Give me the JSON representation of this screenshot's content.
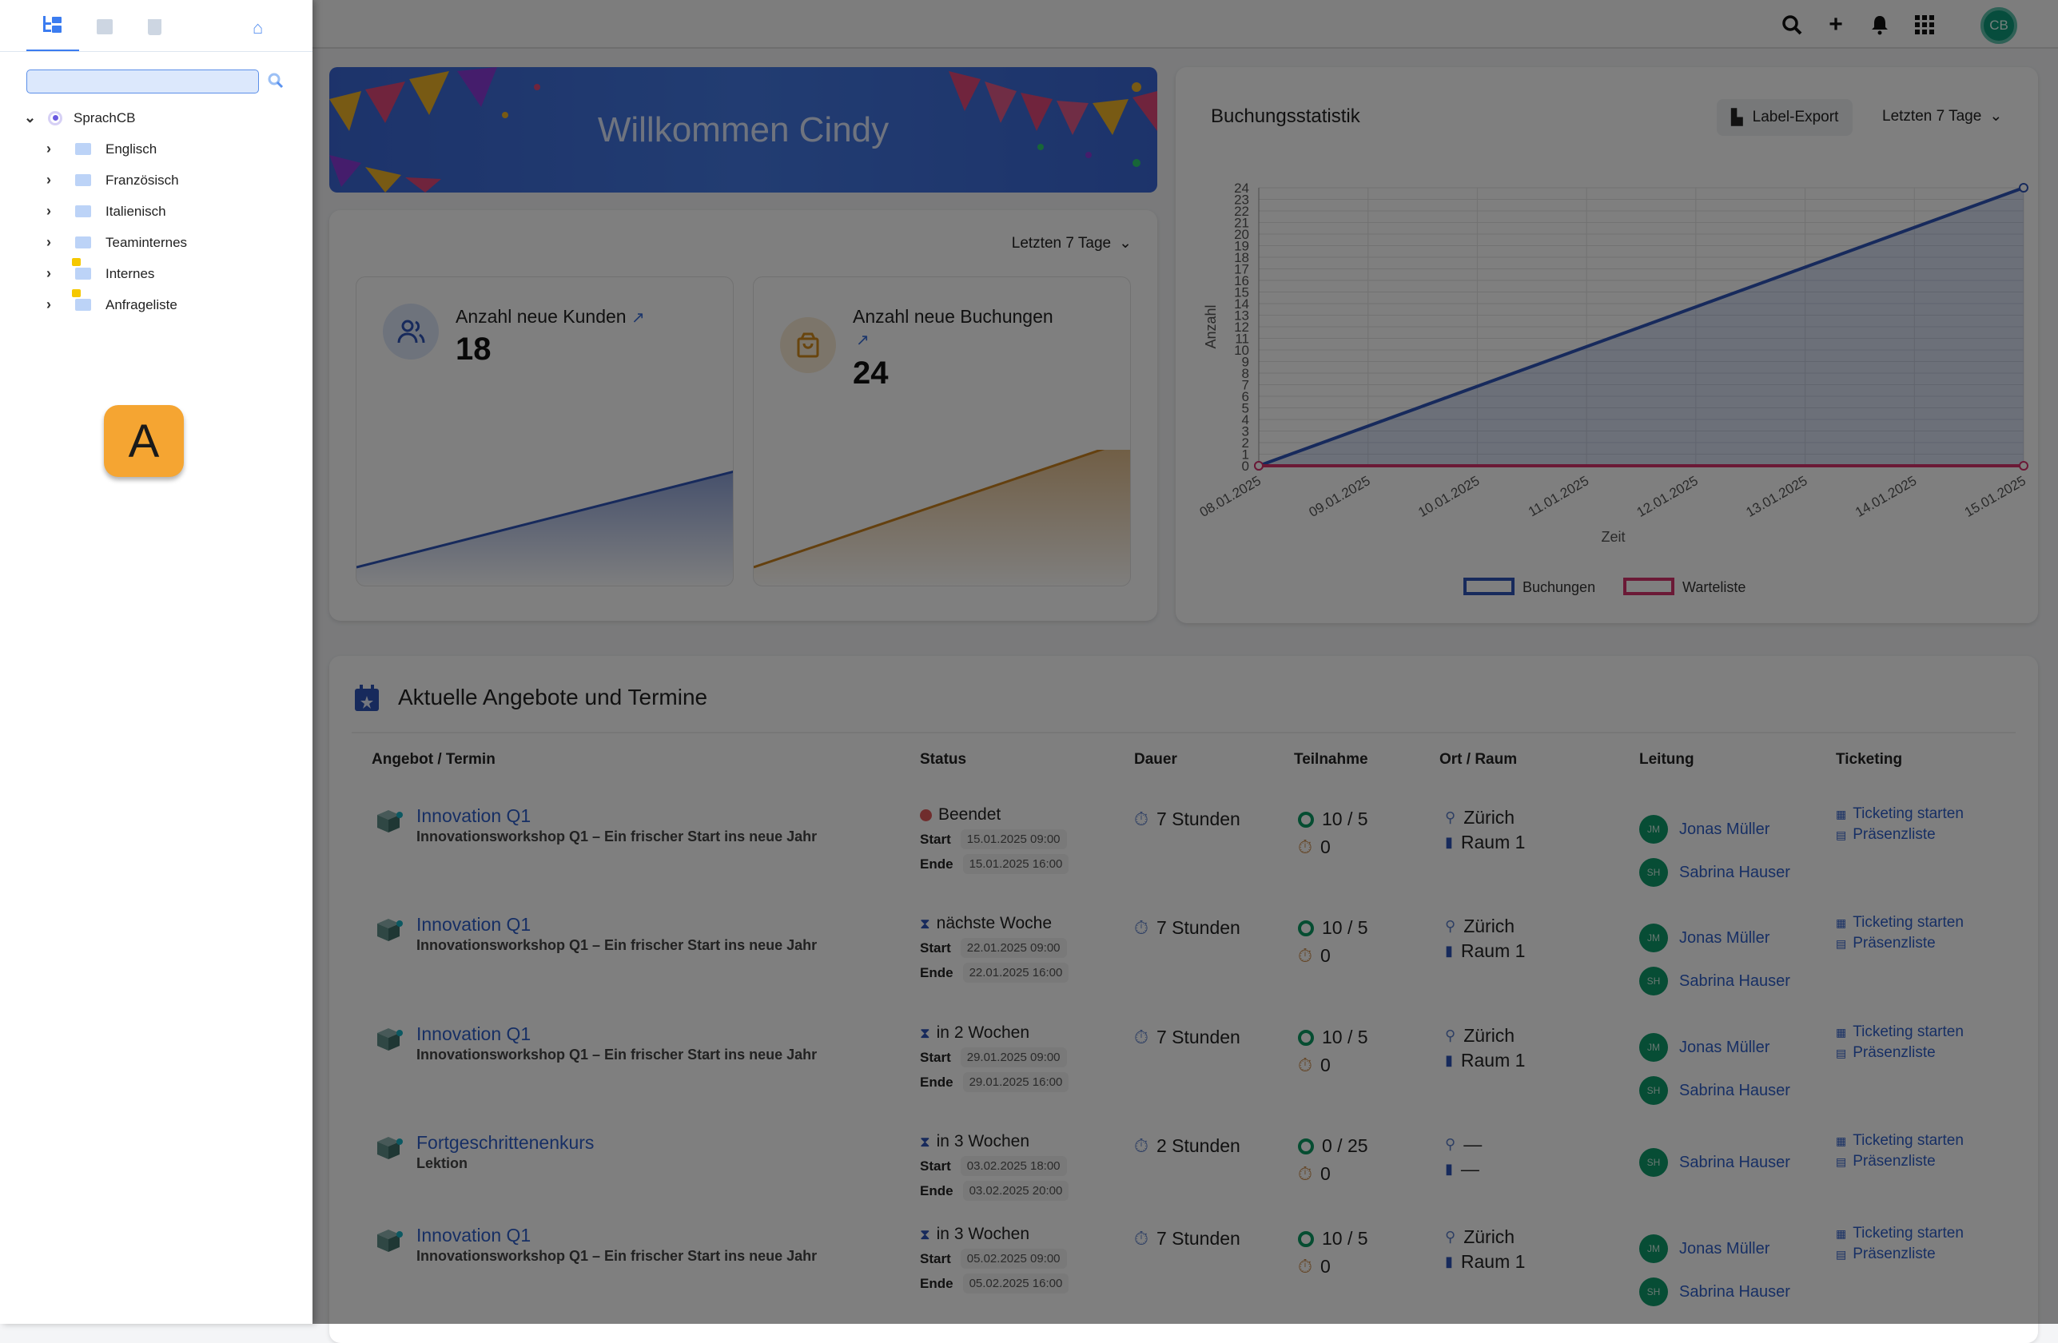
{
  "topbar": {
    "icons": [
      "search-icon",
      "plus-icon",
      "bell-icon",
      "apps-grid-icon"
    ],
    "user_initials": "CB"
  },
  "drawer": {
    "tabs": [
      "tree-icon",
      "archive-icon",
      "trash-icon",
      "home-icon"
    ],
    "search": {
      "value": "",
      "placeholder": ""
    },
    "tree": {
      "root": "SprachCB",
      "items": [
        {
          "label": "Englisch",
          "locked": false
        },
        {
          "label": "Französisch",
          "locked": false
        },
        {
          "label": "Italienisch",
          "locked": false
        },
        {
          "label": "Teaminternes",
          "locked": false
        },
        {
          "label": "Internes",
          "locked": true
        },
        {
          "label": "Anfrageliste",
          "locked": true
        }
      ]
    },
    "badge": "A"
  },
  "welcome": {
    "title": "Willkommen Cindy"
  },
  "stats": {
    "range": "Letzten 7 Tage",
    "cards": [
      {
        "label": "Anzahl neue Kunden",
        "value": "18",
        "color": "#2f55b8",
        "trend": [
          0,
          18
        ]
      },
      {
        "label": "Anzahl neue Buchungen",
        "value": "24",
        "color": "#c8801f",
        "trend": [
          0,
          24
        ]
      }
    ]
  },
  "chart_data": {
    "type": "area",
    "title": "Buchungsstatistik",
    "xlabel": "Zeit",
    "ylabel": "Anzahl",
    "x": [
      "08.01.2025",
      "09.01.2025",
      "10.01.2025",
      "11.01.2025",
      "12.01.2025",
      "13.01.2025",
      "14.01.2025",
      "15.01.2025"
    ],
    "ylim": [
      0,
      24
    ],
    "yticks": [
      0,
      1,
      2,
      3,
      4,
      5,
      6,
      7,
      8,
      9,
      10,
      11,
      12,
      13,
      14,
      15,
      16,
      17,
      18,
      19,
      20,
      21,
      22,
      23,
      24
    ],
    "grid": true,
    "legend": "bottom",
    "series": [
      {
        "name": "Buchungen",
        "color": "#2f55b8",
        "points": [
          [
            "08.01.2025",
            0
          ],
          [
            "15.01.2025",
            24
          ]
        ]
      },
      {
        "name": "Warteliste",
        "color": "#d6336c",
        "points": [
          [
            "08.01.2025",
            0
          ],
          [
            "15.01.2025",
            0
          ]
        ]
      }
    ],
    "export_label": "Label-Export",
    "range": "Letzten 7 Tage"
  },
  "offers": {
    "title": "Aktuelle Angebote und Termine",
    "columns": [
      "Angebot / Termin",
      "Status",
      "Dauer",
      "Teilnahme",
      "Ort / Raum",
      "Leitung",
      "Ticketing"
    ],
    "rows": [
      {
        "title": "Innovation Q1",
        "subtitle": "Innovationsworkshop Q1 – Ein frischer Start ins neue Jahr",
        "status": "Beendet",
        "status_icon": "check-circle-icon",
        "start_label": "Start",
        "start": "15.01.2025 09:00",
        "end_label": "Ende",
        "end": "15.01.2025 16:00",
        "duration": "7 Stunden",
        "participants": "10 / 5",
        "waitlist": "0",
        "place": "Zürich",
        "room": "Raum 1",
        "leaders": [
          {
            "initials": "JM",
            "name": "Jonas Müller"
          },
          {
            "initials": "SH",
            "name": "Sabrina Hauser"
          }
        ],
        "ticketing": "Ticketing starten",
        "attendance": "Präsenzliste"
      },
      {
        "title": "Innovation Q1",
        "subtitle": "Innovationsworkshop Q1 – Ein frischer Start ins neue Jahr",
        "status": "nächste Woche",
        "status_icon": "hourglass-icon",
        "start_label": "Start",
        "start": "22.01.2025 09:00",
        "end_label": "Ende",
        "end": "22.01.2025 16:00",
        "duration": "7 Stunden",
        "participants": "10 / 5",
        "waitlist": "0",
        "place": "Zürich",
        "room": "Raum 1",
        "leaders": [
          {
            "initials": "JM",
            "name": "Jonas Müller"
          },
          {
            "initials": "SH",
            "name": "Sabrina Hauser"
          }
        ],
        "ticketing": "Ticketing starten",
        "attendance": "Präsenzliste"
      },
      {
        "title": "Innovation Q1",
        "subtitle": "Innovationsworkshop Q1 – Ein frischer Start ins neue Jahr",
        "status": "in 2 Wochen",
        "status_icon": "hourglass-icon",
        "start_label": "Start",
        "start": "29.01.2025 09:00",
        "end_label": "Ende",
        "end": "29.01.2025 16:00",
        "duration": "7 Stunden",
        "participants": "10 / 5",
        "waitlist": "0",
        "place": "Zürich",
        "room": "Raum 1",
        "leaders": [
          {
            "initials": "JM",
            "name": "Jonas Müller"
          },
          {
            "initials": "SH",
            "name": "Sabrina Hauser"
          }
        ],
        "ticketing": "Ticketing starten",
        "attendance": "Präsenzliste"
      },
      {
        "title": "Fortgeschrittenenkurs",
        "subtitle": "Lektion",
        "status": "in 3 Wochen",
        "status_icon": "hourglass-icon",
        "start_label": "Start",
        "start": "03.02.2025 18:00",
        "end_label": "Ende",
        "end": "03.02.2025 20:00",
        "duration": "2 Stunden",
        "participants": "0 / 25",
        "waitlist": "0",
        "place": "—",
        "room": "—",
        "leaders": [
          {
            "initials": "SH",
            "name": "Sabrina Hauser"
          }
        ],
        "ticketing": "Ticketing starten",
        "attendance": "Präsenzliste"
      },
      {
        "title": "Innovation Q1",
        "subtitle": "Innovationsworkshop Q1 – Ein frischer Start ins neue Jahr",
        "status": "in 3 Wochen",
        "status_icon": "hourglass-icon",
        "start_label": "Start",
        "start": "05.02.2025 09:00",
        "end_label": "Ende",
        "end": "05.02.2025 16:00",
        "duration": "7 Stunden",
        "participants": "10 / 5",
        "waitlist": "0",
        "place": "Zürich",
        "room": "Raum 1",
        "leaders": [
          {
            "initials": "JM",
            "name": "Jonas Müller"
          },
          {
            "initials": "SH",
            "name": "Sabrina Hauser"
          }
        ],
        "ticketing": "Ticketing starten",
        "attendance": "Präsenzliste"
      }
    ]
  }
}
